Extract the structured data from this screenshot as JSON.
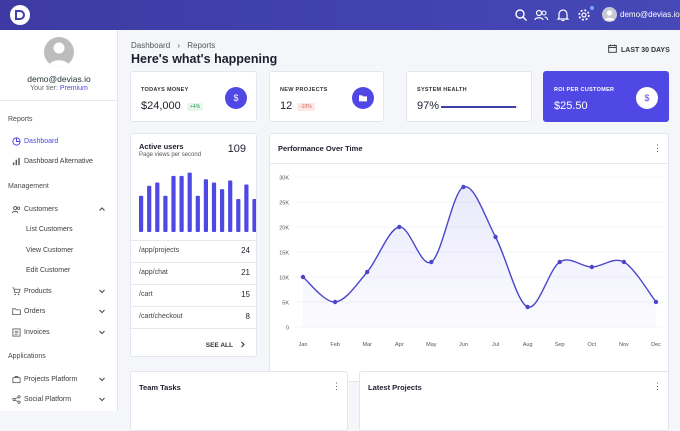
{
  "topbar": {
    "email": "demo@devias.io"
  },
  "sidebar": {
    "email": "demo@devias.io",
    "tier_label": "Your tier:",
    "tier_value": "Premium",
    "sections": [
      "Reports",
      "Management",
      "Applications"
    ],
    "items": {
      "dashboard": "Dashboard",
      "dashboard_alt": "Dashboard Alternative",
      "customers": "Customers",
      "list_customers": "List Customers",
      "view_customer": "View Customer",
      "edit_customer": "Edit Customer",
      "products": "Products",
      "orders": "Orders",
      "invoices": "Invoices",
      "projects_platform": "Projects Platform",
      "social_platform": "Social Platform"
    }
  },
  "header": {
    "crumb_root": "Dashboard",
    "crumb_sep": "›",
    "crumb_current": "Reports",
    "title": "Here's what's happening",
    "range": "LAST 30 DAYS"
  },
  "kpis": {
    "money": {
      "caption": "TODAYS MONEY",
      "value": "$24,000",
      "badge": "+4%"
    },
    "projects": {
      "caption": "NEW PROJECTS",
      "value": "12",
      "badge": "-10%"
    },
    "health": {
      "caption": "SYSTEM HEALTH",
      "value": "97%",
      "progress": 0.97
    },
    "roi": {
      "caption": "ROI PER CUSTOMER",
      "value": "$25.50"
    }
  },
  "active_users": {
    "title": "Active users",
    "subtitle": "Page views per second",
    "count": "109",
    "bars": [
      0.55,
      0.7,
      0.75,
      0.55,
      0.85,
      0.85,
      0.9,
      0.55,
      0.8,
      0.75,
      0.65,
      0.78,
      0.5,
      0.72,
      0.5
    ],
    "rows": [
      {
        "path": "/app/projects",
        "value": "24"
      },
      {
        "path": "/app/chat",
        "value": "21"
      },
      {
        "path": "/cart",
        "value": "15"
      },
      {
        "path": "/cart/checkout",
        "value": "8"
      }
    ],
    "see_all": "SEE ALL"
  },
  "chart_data": {
    "type": "line",
    "title": "Performance Over Time",
    "categories": [
      "Jan",
      "Feb",
      "Mar",
      "Apr",
      "May",
      "Jun",
      "Jul",
      "Aug",
      "Sep",
      "Oct",
      "Nov",
      "Dec"
    ],
    "series": [
      {
        "values": [
          10000,
          5000,
          11000,
          20000,
          13000,
          28000,
          18000,
          4000,
          13000,
          12000,
          13000,
          5000
        ]
      }
    ],
    "ylim": [
      0,
      30000
    ],
    "yticks": [
      "0",
      "5K",
      "10K",
      "15K",
      "20K",
      "25K",
      "30K"
    ]
  },
  "bottom": {
    "team_tasks": "Team Tasks",
    "latest_projects": "Latest Projects"
  },
  "colors": {
    "accent": "#5048e5",
    "topbar": "#3f3fa8"
  }
}
